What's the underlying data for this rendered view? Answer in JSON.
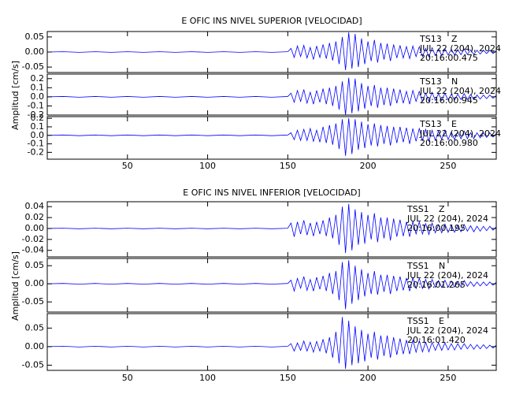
{
  "chart_data": [
    {
      "type": "line",
      "title": "E OFIC INS NIVEL SUPERIOR [VELOCIDAD]",
      "ylabel": "Amplitud [cm/s]",
      "color": "#0000ff",
      "xlim": [
        0,
        280
      ],
      "xticks": [
        50,
        100,
        150,
        200,
        250
      ],
      "x": [
        0,
        10,
        20,
        30,
        40,
        50,
        60,
        70,
        80,
        90,
        100,
        110,
        120,
        130,
        140,
        150,
        152,
        154,
        156,
        158,
        160,
        162,
        164,
        166,
        168,
        170,
        172,
        174,
        176,
        178,
        180,
        182,
        184,
        186,
        188,
        190,
        192,
        194,
        196,
        198,
        200,
        202,
        204,
        206,
        208,
        210,
        212,
        214,
        216,
        218,
        220,
        222,
        224,
        226,
        228,
        230,
        232,
        234,
        236,
        238,
        240,
        242,
        244,
        246,
        248,
        250,
        252,
        254,
        256,
        258,
        260,
        262,
        264,
        266,
        268,
        270,
        272,
        274,
        276,
        278,
        280
      ],
      "panels": [
        {
          "station": "TS13",
          "component": "Z",
          "date": "JUL 22 (204), 2024",
          "time": "20:16:00.475",
          "ylim": [
            -0.068,
            0.068
          ],
          "yticks": [
            -0.05,
            {
              "value": 0,
              "label": "0.00"
            },
            0.05
          ],
          "values": [
            0,
            0.001,
            -0.001,
            0.001,
            -0.001,
            0.001,
            -0.001,
            0.001,
            -0.001,
            0.001,
            -0.001,
            0.001,
            -0.001,
            0.001,
            -0.001,
            0.001,
            0.012,
            -0.018,
            0.02,
            -0.015,
            0.022,
            -0.02,
            0.015,
            -0.025,
            0.02,
            -0.018,
            0.025,
            -0.022,
            0.03,
            -0.028,
            0.035,
            -0.04,
            0.05,
            -0.06,
            0.065,
            -0.055,
            0.06,
            -0.05,
            0.045,
            -0.04,
            0.035,
            -0.03,
            0.04,
            -0.035,
            0.03,
            -0.025,
            0.028,
            -0.03,
            0.025,
            -0.02,
            0.022,
            -0.02,
            0.018,
            -0.022,
            0.02,
            -0.015,
            0.018,
            -0.015,
            0.012,
            -0.016,
            0.014,
            -0.012,
            0.01,
            -0.012,
            0.011,
            -0.01,
            0.009,
            -0.01,
            0.008,
            -0.009,
            0.01,
            -0.008,
            0.007,
            -0.008,
            0.006,
            -0.007,
            0.006,
            -0.005,
            0.006,
            -0.005,
            0.004
          ]
        },
        {
          "station": "TS13",
          "component": "N",
          "date": "JUL 22 (204), 2024",
          "time": "20:16:00.945",
          "ylim": [
            -0.2,
            0.25
          ],
          "yticks": [
            -0.2,
            -0.1,
            {
              "value": 0,
              "label": "0.0"
            },
            0.1,
            0.2
          ],
          "values": [
            0,
            0.004,
            -0.004,
            0.004,
            -0.004,
            0.004,
            -0.004,
            0.004,
            -0.004,
            0.004,
            -0.004,
            0.004,
            -0.004,
            0.004,
            -0.004,
            0.004,
            0.04,
            -0.06,
            0.07,
            -0.05,
            0.08,
            -0.07,
            0.05,
            -0.08,
            0.07,
            -0.06,
            0.09,
            -0.08,
            0.1,
            -0.1,
            0.12,
            -0.14,
            0.17,
            -0.2,
            0.21,
            -0.18,
            0.2,
            -0.16,
            0.15,
            -0.13,
            0.12,
            -0.1,
            0.13,
            -0.12,
            0.1,
            -0.09,
            0.1,
            -0.1,
            0.09,
            -0.07,
            0.08,
            -0.07,
            0.06,
            -0.08,
            0.07,
            -0.05,
            0.06,
            -0.05,
            0.04,
            -0.05,
            0.05,
            -0.04,
            0.035,
            -0.04,
            0.04,
            -0.035,
            0.03,
            -0.035,
            0.03,
            -0.03,
            0.035,
            -0.03,
            0.025,
            -0.03,
            0.02,
            -0.025,
            0.02,
            -0.02,
            0.02,
            -0.015,
            0.015
          ]
        },
        {
          "station": "TS13",
          "component": "E",
          "date": "JUL 22 (204), 2024",
          "time": "20:16:00.980",
          "ylim": [
            -0.28,
            0.22
          ],
          "yticks": [
            -0.2,
            -0.1,
            {
              "value": 0,
              "label": "0.0"
            },
            0.1,
            0.2
          ],
          "values": [
            0,
            0.004,
            -0.004,
            0.004,
            -0.004,
            0.004,
            -0.004,
            0.004,
            -0.004,
            0.004,
            -0.004,
            0.004,
            -0.004,
            0.004,
            -0.004,
            0.004,
            0.03,
            -0.05,
            0.06,
            -0.06,
            0.07,
            -0.06,
            0.08,
            -0.07,
            0.06,
            -0.08,
            0.1,
            -0.09,
            0.12,
            -0.11,
            0.14,
            -0.16,
            0.19,
            -0.24,
            0.2,
            -0.22,
            0.19,
            -0.17,
            0.16,
            -0.15,
            0.13,
            -0.12,
            0.14,
            -0.13,
            0.12,
            -0.1,
            0.11,
            -0.12,
            0.1,
            -0.09,
            0.1,
            -0.08,
            0.09,
            -0.1,
            0.08,
            -0.07,
            0.08,
            -0.06,
            0.07,
            -0.07,
            0.06,
            -0.06,
            0.05,
            -0.05,
            0.06,
            -0.05,
            0.04,
            -0.05,
            0.04,
            -0.04,
            0.05,
            -0.04,
            0.03,
            -0.04,
            0.03,
            -0.03,
            0.03,
            -0.025,
            0.03,
            -0.02,
            0.02
          ]
        }
      ]
    },
    {
      "type": "line",
      "title": "E OFIC INS NIVEL INFERIOR [VELOCIDAD]",
      "ylabel": "Amplitud [cm/s]",
      "color": "#0000ff",
      "xlim": [
        0,
        280
      ],
      "xticks": [
        50,
        100,
        150,
        200,
        250
      ],
      "x": [
        0,
        10,
        20,
        30,
        40,
        50,
        60,
        70,
        80,
        90,
        100,
        110,
        120,
        130,
        140,
        150,
        152,
        154,
        156,
        158,
        160,
        162,
        164,
        166,
        168,
        170,
        172,
        174,
        176,
        178,
        180,
        182,
        184,
        186,
        188,
        190,
        192,
        194,
        196,
        198,
        200,
        202,
        204,
        206,
        208,
        210,
        212,
        214,
        216,
        218,
        220,
        222,
        224,
        226,
        228,
        230,
        232,
        234,
        236,
        238,
        240,
        242,
        244,
        246,
        248,
        250,
        252,
        254,
        256,
        258,
        260,
        262,
        264,
        266,
        268,
        270,
        272,
        274,
        276,
        278,
        280
      ],
      "panels": [
        {
          "station": "TSS1",
          "component": "Z",
          "date": "JUL 22 (204), 2024",
          "time": "20:16:00.195",
          "ylim": [
            -0.052,
            0.049
          ],
          "yticks": [
            -0.04,
            -0.02,
            {
              "value": 0,
              "label": "0.00"
            },
            0.02,
            0.04
          ],
          "values": [
            0,
            0.0005,
            -0.0005,
            0.0005,
            -0.0005,
            0.0005,
            -0.0005,
            0.0005,
            -0.0005,
            0.0005,
            -0.0005,
            0.0005,
            -0.0005,
            0.0005,
            -0.0005,
            0.0005,
            0.01,
            -0.015,
            0.012,
            -0.01,
            0.015,
            -0.012,
            0.01,
            -0.014,
            0.012,
            -0.01,
            0.015,
            -0.014,
            0.02,
            -0.018,
            0.025,
            -0.03,
            0.04,
            -0.045,
            0.045,
            -0.04,
            0.035,
            -0.03,
            0.03,
            -0.028,
            0.025,
            -0.02,
            0.028,
            -0.025,
            0.02,
            -0.018,
            0.02,
            -0.022,
            0.018,
            -0.015,
            0.016,
            -0.014,
            0.012,
            -0.015,
            0.013,
            -0.01,
            0.012,
            -0.01,
            0.009,
            -0.011,
            0.01,
            -0.008,
            0.007,
            -0.008,
            0.008,
            -0.007,
            0.006,
            -0.007,
            0.006,
            -0.006,
            0.007,
            -0.005,
            0.005,
            -0.006,
            0.004,
            -0.005,
            0.004,
            -0.004,
            0.004,
            -0.003,
            0.003
          ]
        },
        {
          "station": "TSS1",
          "component": "N",
          "date": "JUL 22 (204), 2024",
          "time": "20:16:01.265",
          "ylim": [
            -0.078,
            0.07
          ],
          "yticks": [
            -0.05,
            {
              "value": 0,
              "label": "0.00"
            },
            0.05
          ],
          "values": [
            0,
            0.001,
            -0.001,
            0.001,
            -0.001,
            0.001,
            -0.001,
            0.001,
            -0.001,
            0.001,
            -0.001,
            0.001,
            -0.001,
            0.001,
            -0.001,
            0.001,
            0.01,
            -0.02,
            0.015,
            -0.012,
            0.02,
            -0.018,
            0.012,
            -0.02,
            0.018,
            -0.015,
            0.022,
            -0.02,
            0.03,
            -0.028,
            0.035,
            -0.045,
            0.06,
            -0.07,
            0.065,
            -0.055,
            0.05,
            -0.045,
            0.04,
            -0.035,
            0.03,
            -0.028,
            0.035,
            -0.03,
            0.025,
            -0.022,
            0.025,
            -0.028,
            0.022,
            -0.02,
            0.02,
            -0.018,
            0.016,
            -0.02,
            0.017,
            -0.013,
            0.015,
            -0.013,
            0.012,
            -0.014,
            0.012,
            -0.01,
            0.009,
            -0.01,
            0.01,
            -0.009,
            0.008,
            -0.009,
            0.007,
            -0.008,
            0.009,
            -0.007,
            0.006,
            -0.007,
            0.005,
            -0.006,
            0.005,
            -0.005,
            0.005,
            -0.004,
            0.004
          ]
        },
        {
          "station": "TSS1",
          "component": "E",
          "date": "JUL 22 (204), 2024",
          "time": "20:16:01.420",
          "ylim": [
            -0.064,
            0.089
          ],
          "yticks": [
            -0.05,
            {
              "value": 0,
              "label": "0.00"
            },
            0.05
          ],
          "values": [
            0,
            0.001,
            -0.001,
            0.001,
            -0.001,
            0.001,
            -0.001,
            0.001,
            -0.001,
            0.001,
            -0.001,
            0.001,
            -0.001,
            0.001,
            -0.001,
            0.001,
            0.008,
            -0.012,
            0.01,
            -0.01,
            0.015,
            -0.012,
            0.012,
            -0.015,
            0.014,
            -0.012,
            0.02,
            -0.018,
            0.025,
            -0.03,
            0.04,
            -0.045,
            0.08,
            -0.06,
            0.07,
            -0.05,
            0.055,
            -0.045,
            0.045,
            -0.04,
            0.035,
            -0.03,
            0.04,
            -0.035,
            0.03,
            -0.025,
            0.03,
            -0.03,
            0.025,
            -0.022,
            0.022,
            -0.02,
            0.018,
            -0.02,
            0.018,
            -0.015,
            0.016,
            -0.014,
            0.012,
            -0.014,
            0.012,
            -0.01,
            0.01,
            -0.01,
            0.01,
            -0.009,
            0.008,
            -0.009,
            0.008,
            -0.007,
            0.008,
            -0.006,
            0.006,
            -0.007,
            0.005,
            -0.006,
            0.005,
            -0.005,
            0.004,
            -0.004,
            0.004
          ]
        }
      ]
    }
  ]
}
